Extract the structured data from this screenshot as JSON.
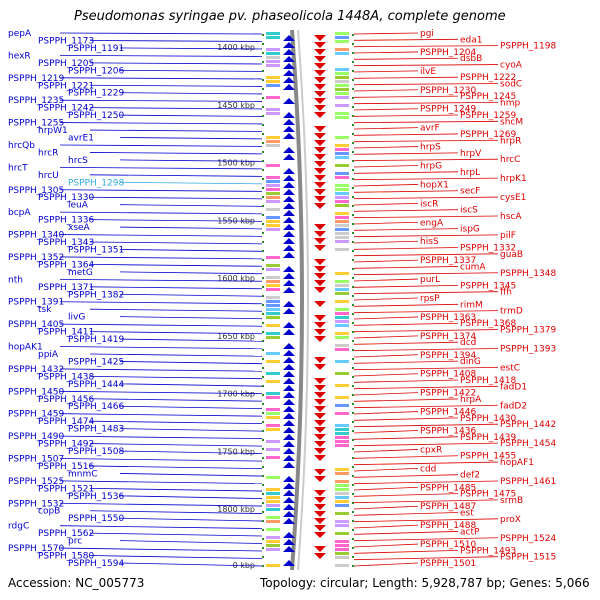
{
  "title": "Pseudomonas syringae pv. phaseolicola 1448A, complete genome",
  "footer": {
    "accession": "Accession: NC_005773",
    "topology": "Topology: circular; Length: 5,928,787 bp; Genes: 5,066"
  },
  "colors": {
    "left_gene": "#0000cc",
    "right_gene": "#dd0000",
    "highlight": "#33aadd",
    "kbp_label": "#333333"
  },
  "kbp_labels": [
    "1400 kbp",
    "1450 kbp",
    "1500 kbp",
    "1550 kbp",
    "1600 kbp",
    "1650 kbp",
    "1700 kbp",
    "1750 kbp",
    "1800 kbp",
    "0 kbp"
  ],
  "left_labels": [
    "pepA",
    "PSPPH_1173",
    "PSPPH_1191",
    "hexR",
    "PSPPH_1205",
    "PSPPH_1206",
    "PSPPH_1219",
    "PSPPH_1221",
    "PSPPH_1229",
    "PSPPH_1235",
    "PSPPH_1242",
    "PSPPH_1250",
    "PSPPH_1255",
    "hrpW1",
    "avrE1",
    "hrcQb",
    "hrcR",
    "hrcS",
    "hrcT",
    "hrcU",
    "PSPPH_1298",
    "PSPPH_1305",
    "PSPPH_1330",
    "leuA",
    "bcpA",
    "PSPPH_1336",
    "xseA",
    "PSPPH_1340",
    "PSPPH_1343",
    "PSPPH_1351",
    "PSPPH_1352",
    "PSPPH_1364",
    "metG",
    "nth",
    "PSPPH_1371",
    "PSPPH_1382",
    "PSPPH_1391",
    "tsk",
    "livG",
    "PSPPH_1405",
    "PSPPH_1411",
    "PSPPH_1419",
    "hopAK1",
    "ppiA",
    "PSPPH_1425",
    "PSPPH_1432",
    "PSPPH_1438",
    "PSPPH_1444",
    "PSPPH_1450",
    "PSPPH_1456",
    "PSPPH_1466",
    "PSPPH_1459",
    "PSPPH_1474",
    "PSPPH_1483",
    "PSPPH_1490",
    "PSPPH_1492",
    "PSPPH_1508",
    "PSPPH_1507",
    "PSPPH_1516",
    "mnmC",
    "PSPPH_1525",
    "PSPPH_1521",
    "PSPPH_1536",
    "PSPPH_1532",
    "copB",
    "PSPPH_1550",
    "rdgC",
    "PSPPH_1562",
    "prc",
    "PSPPH_1570",
    "PSPPH_1580",
    "PSPPH_1594"
  ],
  "right_labels": [
    "pgi",
    "eda1",
    "PSPPH_1198",
    "PSPPH_1204",
    "dsbB",
    "cyoA",
    "ilvE",
    "PSPPH_1222",
    "sodC",
    "PSPPH_1230",
    "PSPPH_1245",
    "hmp",
    "PSPPH_1249",
    "PSPPH_1259",
    "shcM",
    "avrF",
    "PSPPH_1269",
    "hrpR",
    "hrpS",
    "hrpV",
    "hrcC",
    "hrpG",
    "hrpL",
    "hrpK1",
    "hopX1",
    "secF",
    "cysE1",
    "iscR",
    "iscS",
    "hscA",
    "engA",
    "ispG",
    "pilF",
    "hisS",
    "PSPPH_1332",
    "guaB",
    "PSPPH_1337",
    "cumA",
    "PSPPH_1348",
    "purL",
    "PSPPH_1345",
    "ffh",
    "rpsP",
    "rimM",
    "trmD",
    "PSPPH_1363",
    "PSPPH_1368",
    "PSPPH_1379",
    "PSPPH_1374",
    "dcd",
    "PSPPH_1393",
    "PSPPH_1394",
    "dinG",
    "estC",
    "PSPPH_1408",
    "PSPPH_1418",
    "fadD1",
    "PSPPH_1422",
    "hrpA",
    "fadD2",
    "PSPPH_1446",
    "PSPPH_1430",
    "PSPPH_1442",
    "PSPPH_1436",
    "PSPPH_1439",
    "PSPPH_1454",
    "cpxR",
    "PSPPH_1455",
    "hopAF1",
    "cdd",
    "def2",
    "PSPPH_1461",
    "PSPPH_1485",
    "PSPPH_1475",
    "srmB",
    "PSPPH_1487",
    "est",
    "proX",
    "PSPPH_1488",
    "actP",
    "PSPPH_1524",
    "PSPPH_1510",
    "PSPPH_1493",
    "PSPPH_1515",
    "PSPPH_1501"
  ]
}
